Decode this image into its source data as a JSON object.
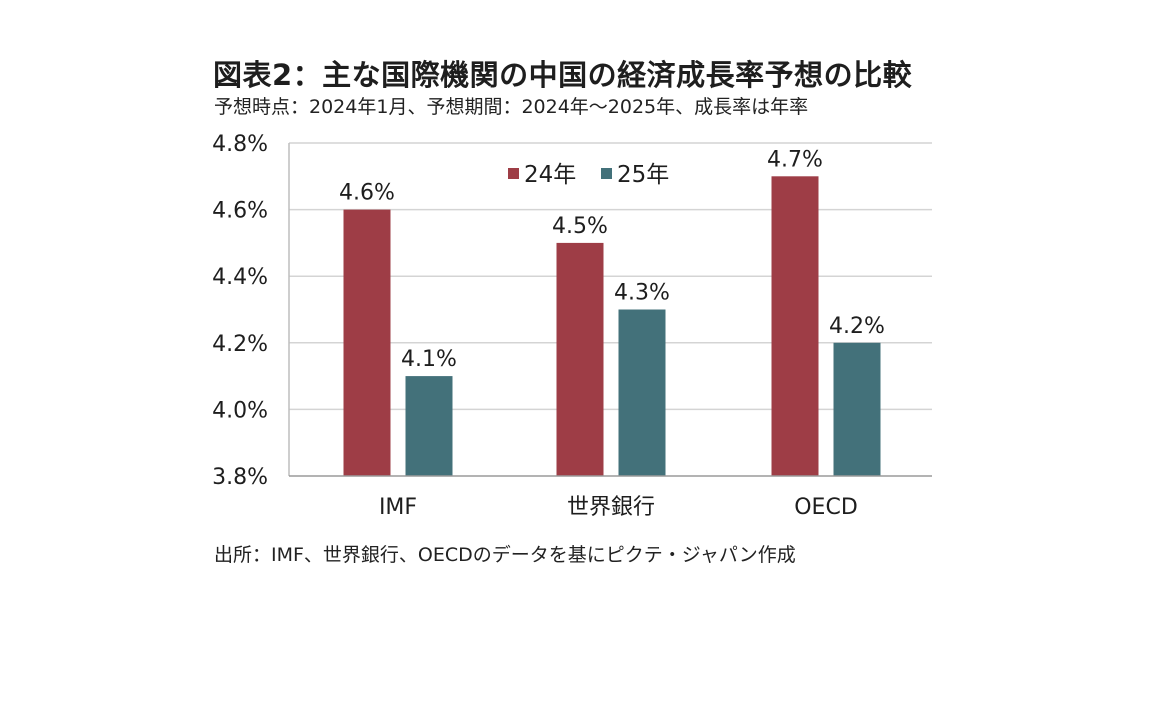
{
  "title": "図表2：主な国際機関の中国の経済成長率予想の比較",
  "subtitle": "予想時点：2024年1月、予想期間：2024年～2025年、成長率は年率",
  "source": "出所：IMF、世界銀行、OECDのデータを基にピクテ・ジャパン作成",
  "chart_data": {
    "type": "bar",
    "categories": [
      "IMF",
      "世界銀行",
      "OECD"
    ],
    "series": [
      {
        "name": "24年",
        "color": "#9e3d46",
        "values": [
          4.6,
          4.5,
          4.7
        ],
        "labels": [
          "4.6%",
          "4.5%",
          "4.7%"
        ]
      },
      {
        "name": "25年",
        "color": "#43717a",
        "values": [
          4.1,
          4.3,
          4.2
        ],
        "labels": [
          "4.1%",
          "4.3%",
          "4.2%"
        ]
      }
    ],
    "ylim": [
      3.8,
      4.8
    ],
    "yticks": [
      3.8,
      4.0,
      4.2,
      4.4,
      4.6,
      4.8
    ],
    "ytick_labels": [
      "3.8%",
      "4.0%",
      "4.2%",
      "4.4%",
      "4.6%",
      "4.8%"
    ],
    "grid": true,
    "legend_position": "top-center",
    "xlabel": "",
    "ylabel": ""
  }
}
